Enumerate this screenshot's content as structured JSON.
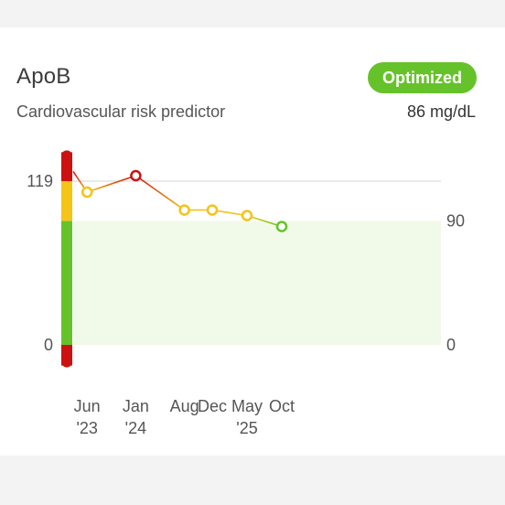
{
  "card": {
    "title": "ApoB",
    "subtitle": "Cardiovascular risk predictor",
    "status_badge": "Optimized",
    "current_value": "86 mg/dL",
    "status_color": "#66c22a"
  },
  "chart_data": {
    "type": "line",
    "categories": [
      "Jun\n'23",
      "Jan\n'24",
      "Aug",
      "Dec",
      "May\n'25",
      "Oct"
    ],
    "x": [
      "2023-04",
      "2023-06",
      "2024-01",
      "2024-08",
      "2024-12",
      "2025-05",
      "2025-10"
    ],
    "series": [
      {
        "values": [
          126,
          111,
          123,
          98,
          98,
          94,
          86
        ],
        "point_status": [
          null,
          "borderline",
          "high",
          "borderline",
          "borderline",
          "borderline",
          "optimal"
        ]
      }
    ],
    "ylim": [
      0,
      119
    ],
    "left_ticks": [
      "119",
      "0"
    ],
    "right_ticks": [
      "90",
      "0"
    ],
    "optimal_range": [
      0,
      90
    ],
    "bands": [
      {
        "status": "high",
        "from": 119,
        "to": 140,
        "color": "#cc1111"
      },
      {
        "status": "borderline",
        "from": 90,
        "to": 119,
        "color": "#f4c416"
      },
      {
        "status": "optimal",
        "from": 0,
        "to": 90,
        "color": "#66c22a"
      },
      {
        "status": "low",
        "from": -15,
        "to": 0,
        "color": "#cc1111"
      }
    ],
    "colors": {
      "high": "#cc1111",
      "borderline": "#f4c416",
      "optimal": "#66c22a",
      "optimal_zone_fill": "#f1f9e9"
    },
    "grid": true
  }
}
